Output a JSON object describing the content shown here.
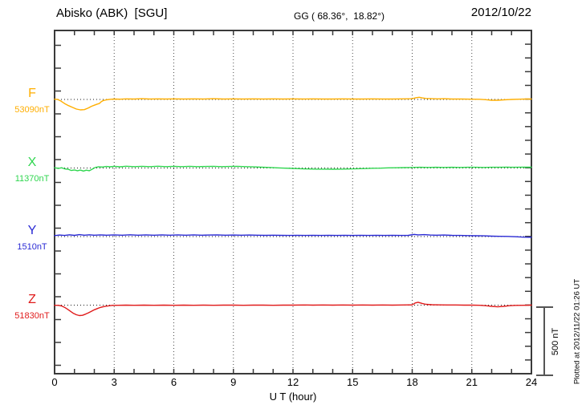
{
  "header": {
    "station": "Abisko (ABK)  [SGU]",
    "coords": "GG ( 68.36°,  18.82°)",
    "date": "2012/10/22"
  },
  "side": {
    "scale_label": "500 nT",
    "plotted_at": "Plotted at 2012/11/22 01:26 UT"
  },
  "chart_data": {
    "type": "line",
    "title": "Abisko (ABK) [SGU] magnetogram 2012/10/22",
    "xlabel": "U T (hour)",
    "ylabel": "",
    "xlim": [
      0,
      24
    ],
    "x_ticks": [
      0,
      3,
      6,
      9,
      12,
      15,
      18,
      21,
      24
    ],
    "grid": "vertical-dotted-every-3-hours",
    "scale_bar_nT": 500,
    "axis_color": "#3a3a3a",
    "baseline_style": "dotted",
    "channels": [
      {
        "name": "F",
        "base_label": "53090nT",
        "base_nT": 53090,
        "color": "#FFAE00",
        "points": [
          [
            0,
            2
          ],
          [
            0.15,
            0
          ],
          [
            0.3,
            -10
          ],
          [
            0.5,
            -30
          ],
          [
            0.7,
            -45
          ],
          [
            0.9,
            -58
          ],
          [
            1.1,
            -70
          ],
          [
            1.3,
            -76
          ],
          [
            1.5,
            -74
          ],
          [
            1.7,
            -62
          ],
          [
            1.85,
            -50
          ],
          [
            2.0,
            -42
          ],
          [
            2.15,
            -34
          ],
          [
            2.25,
            -30
          ],
          [
            2.35,
            -16
          ],
          [
            2.45,
            -8
          ],
          [
            2.6,
            -3
          ],
          [
            2.8,
            1
          ],
          [
            3.0,
            3
          ],
          [
            3.3,
            2
          ],
          [
            3.6,
            4
          ],
          [
            4.0,
            3
          ],
          [
            4.4,
            5
          ],
          [
            4.8,
            3
          ],
          [
            5.2,
            4
          ],
          [
            5.6,
            3
          ],
          [
            6.0,
            4
          ],
          [
            6.5,
            3
          ],
          [
            7.0,
            4
          ],
          [
            7.5,
            3
          ],
          [
            8.0,
            5
          ],
          [
            8.5,
            3
          ],
          [
            9.0,
            4
          ],
          [
            9.5,
            3
          ],
          [
            10.0,
            4
          ],
          [
            10.5,
            3
          ],
          [
            11.0,
            4
          ],
          [
            11.5,
            3
          ],
          [
            12.0,
            4
          ],
          [
            12.5,
            3
          ],
          [
            13.0,
            4
          ],
          [
            13.5,
            3
          ],
          [
            14.0,
            3
          ],
          [
            14.5,
            4
          ],
          [
            15.0,
            3
          ],
          [
            15.5,
            3
          ],
          [
            16.0,
            4
          ],
          [
            16.5,
            3
          ],
          [
            17.0,
            3
          ],
          [
            17.5,
            4
          ],
          [
            18.0,
            5
          ],
          [
            18.2,
            13
          ],
          [
            18.35,
            16
          ],
          [
            18.5,
            11
          ],
          [
            18.7,
            7
          ],
          [
            19.0,
            5
          ],
          [
            19.3,
            4
          ],
          [
            19.6,
            5
          ],
          [
            20.0,
            3
          ],
          [
            20.5,
            3
          ],
          [
            21.0,
            2
          ],
          [
            21.4,
            1
          ],
          [
            21.7,
            -2
          ],
          [
            22.0,
            -6
          ],
          [
            22.3,
            -6
          ],
          [
            22.6,
            -3
          ],
          [
            23.0,
            0
          ],
          [
            23.4,
            2
          ],
          [
            23.7,
            3
          ],
          [
            24,
            3
          ]
        ]
      },
      {
        "name": "X",
        "base_label": "11370nT",
        "base_nT": 11370,
        "color": "#2FD64F",
        "points": [
          [
            0,
            2
          ],
          [
            0.2,
            -3
          ],
          [
            0.35,
            2
          ],
          [
            0.5,
            -6
          ],
          [
            0.7,
            -10
          ],
          [
            0.85,
            -18
          ],
          [
            1.0,
            -14
          ],
          [
            1.15,
            -20
          ],
          [
            1.3,
            -15
          ],
          [
            1.45,
            -22
          ],
          [
            1.6,
            -16
          ],
          [
            1.75,
            -20
          ],
          [
            1.9,
            -8
          ],
          [
            2.05,
            4
          ],
          [
            2.2,
            9
          ],
          [
            2.4,
            7
          ],
          [
            2.6,
            11
          ],
          [
            2.8,
            9
          ],
          [
            3.0,
            12
          ],
          [
            3.3,
            9
          ],
          [
            3.6,
            13
          ],
          [
            4.0,
            10
          ],
          [
            4.4,
            12
          ],
          [
            4.8,
            10
          ],
          [
            5.2,
            13
          ],
          [
            5.6,
            10
          ],
          [
            6.0,
            12
          ],
          [
            6.4,
            10
          ],
          [
            6.8,
            12
          ],
          [
            7.2,
            10
          ],
          [
            7.6,
            11
          ],
          [
            8.0,
            12
          ],
          [
            8.4,
            10
          ],
          [
            8.8,
            11
          ],
          [
            9.2,
            12
          ],
          [
            9.6,
            10
          ],
          [
            10.0,
            8
          ],
          [
            10.4,
            6
          ],
          [
            10.8,
            4
          ],
          [
            11.2,
            1
          ],
          [
            11.6,
            -1
          ],
          [
            12.0,
            -3
          ],
          [
            12.4,
            -5
          ],
          [
            12.8,
            -7
          ],
          [
            13.2,
            -8
          ],
          [
            13.6,
            -8
          ],
          [
            14.0,
            -9
          ],
          [
            14.4,
            -8
          ],
          [
            14.8,
            -7
          ],
          [
            15.2,
            -5
          ],
          [
            15.6,
            -4
          ],
          [
            16.0,
            -2
          ],
          [
            16.4,
            -1
          ],
          [
            16.8,
            1
          ],
          [
            17.2,
            2
          ],
          [
            17.6,
            3
          ],
          [
            18.0,
            4
          ],
          [
            18.4,
            5
          ],
          [
            18.8,
            4
          ],
          [
            19.2,
            5
          ],
          [
            19.6,
            4
          ],
          [
            20.0,
            5
          ],
          [
            20.4,
            4
          ],
          [
            20.8,
            5
          ],
          [
            21.2,
            5
          ],
          [
            21.6,
            4
          ],
          [
            22.0,
            5
          ],
          [
            22.4,
            5
          ],
          [
            22.8,
            6
          ],
          [
            23.2,
            5
          ],
          [
            23.6,
            6
          ],
          [
            24,
            6
          ]
        ]
      },
      {
        "name": "Y",
        "base_label": "1510nT",
        "base_nT": 1510,
        "color": "#2A2AD4",
        "points": [
          [
            0,
            7
          ],
          [
            0.25,
            11
          ],
          [
            0.5,
            8
          ],
          [
            0.75,
            13
          ],
          [
            1.0,
            9
          ],
          [
            1.25,
            14
          ],
          [
            1.5,
            10
          ],
          [
            1.75,
            13
          ],
          [
            2.0,
            10
          ],
          [
            2.3,
            12
          ],
          [
            2.6,
            10
          ],
          [
            3.0,
            12
          ],
          [
            3.4,
            10
          ],
          [
            3.8,
            13
          ],
          [
            4.2,
            10
          ],
          [
            4.6,
            12
          ],
          [
            5.0,
            10
          ],
          [
            5.4,
            12
          ],
          [
            5.8,
            10
          ],
          [
            6.2,
            12
          ],
          [
            6.6,
            10
          ],
          [
            7.0,
            12
          ],
          [
            7.4,
            10
          ],
          [
            7.8,
            11
          ],
          [
            8.2,
            12
          ],
          [
            8.6,
            10
          ],
          [
            9.0,
            11
          ],
          [
            9.4,
            10
          ],
          [
            9.8,
            11
          ],
          [
            10.2,
            10
          ],
          [
            10.6,
            9
          ],
          [
            11.0,
            10
          ],
          [
            11.4,
            9
          ],
          [
            11.8,
            8
          ],
          [
            12.2,
            9
          ],
          [
            12.6,
            8
          ],
          [
            13.0,
            9
          ],
          [
            13.4,
            8
          ],
          [
            13.8,
            9
          ],
          [
            14.2,
            8
          ],
          [
            14.6,
            9
          ],
          [
            15.0,
            8
          ],
          [
            15.4,
            9
          ],
          [
            15.8,
            8
          ],
          [
            16.2,
            9
          ],
          [
            16.6,
            8
          ],
          [
            17.0,
            9
          ],
          [
            17.4,
            8
          ],
          [
            17.8,
            9
          ],
          [
            18.1,
            16
          ],
          [
            18.3,
            12
          ],
          [
            18.6,
            14
          ],
          [
            18.9,
            11
          ],
          [
            19.2,
            10
          ],
          [
            19.6,
            11
          ],
          [
            20.0,
            9
          ],
          [
            20.4,
            8
          ],
          [
            20.8,
            7
          ],
          [
            21.2,
            6
          ],
          [
            21.6,
            5
          ],
          [
            22.0,
            3
          ],
          [
            22.4,
            2
          ],
          [
            22.8,
            1
          ],
          [
            23.2,
            -1
          ],
          [
            23.6,
            -4
          ],
          [
            24,
            -5
          ]
        ]
      },
      {
        "name": "Z",
        "base_label": "51830nT",
        "base_nT": 51830,
        "color": "#E01B1B",
        "points": [
          [
            0,
            -1
          ],
          [
            0.2,
            -2
          ],
          [
            0.35,
            -6
          ],
          [
            0.5,
            -16
          ],
          [
            0.65,
            -30
          ],
          [
            0.8,
            -45
          ],
          [
            0.95,
            -60
          ],
          [
            1.1,
            -70
          ],
          [
            1.25,
            -76
          ],
          [
            1.4,
            -74
          ],
          [
            1.55,
            -66
          ],
          [
            1.7,
            -56
          ],
          [
            1.85,
            -45
          ],
          [
            2.0,
            -34
          ],
          [
            2.15,
            -25
          ],
          [
            2.3,
            -17
          ],
          [
            2.5,
            -10
          ],
          [
            2.7,
            -5
          ],
          [
            2.9,
            -2
          ],
          [
            3.2,
            -1
          ],
          [
            3.6,
            0
          ],
          [
            4.0,
            -1
          ],
          [
            4.5,
            0
          ],
          [
            5.0,
            -1
          ],
          [
            5.5,
            0
          ],
          [
            6.0,
            -1
          ],
          [
            6.5,
            0
          ],
          [
            7.0,
            -1
          ],
          [
            7.5,
            0
          ],
          [
            8.0,
            -1
          ],
          [
            8.5,
            0
          ],
          [
            9.0,
            0
          ],
          [
            9.5,
            -1
          ],
          [
            10.0,
            0
          ],
          [
            10.5,
            0
          ],
          [
            11.0,
            -1
          ],
          [
            11.5,
            0
          ],
          [
            12.0,
            0
          ],
          [
            12.5,
            1
          ],
          [
            13.0,
            0
          ],
          [
            13.5,
            1
          ],
          [
            14.0,
            0
          ],
          [
            14.5,
            1
          ],
          [
            15.0,
            0
          ],
          [
            15.5,
            1
          ],
          [
            16.0,
            0
          ],
          [
            16.5,
            1
          ],
          [
            17.0,
            0
          ],
          [
            17.5,
            1
          ],
          [
            18.0,
            2
          ],
          [
            18.15,
            16
          ],
          [
            18.3,
            21
          ],
          [
            18.5,
            12
          ],
          [
            18.7,
            6
          ],
          [
            19.0,
            3
          ],
          [
            19.4,
            2
          ],
          [
            19.8,
            1
          ],
          [
            20.2,
            1
          ],
          [
            20.6,
            0
          ],
          [
            21.0,
            0
          ],
          [
            21.4,
            -1
          ],
          [
            21.7,
            -4
          ],
          [
            22.0,
            -9
          ],
          [
            22.3,
            -12
          ],
          [
            22.6,
            -9
          ],
          [
            22.9,
            -4
          ],
          [
            23.2,
            -2
          ],
          [
            23.6,
            -1
          ],
          [
            24,
            0
          ]
        ]
      }
    ]
  }
}
